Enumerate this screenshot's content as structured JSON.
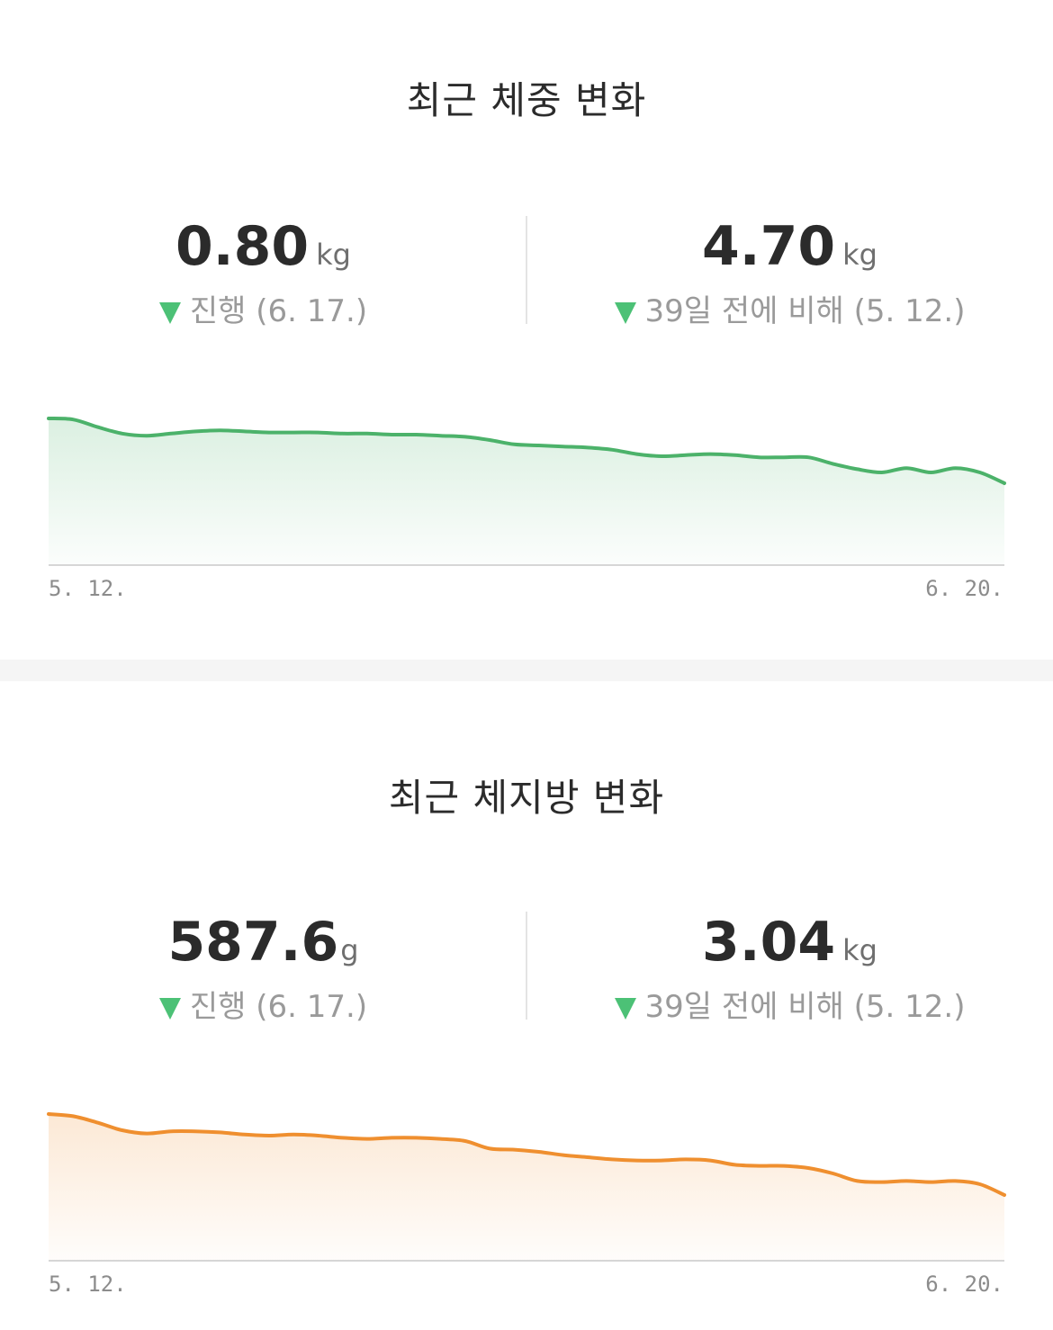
{
  "weight": {
    "title": "최근 체중 변화",
    "left_stat": {
      "value": "0.80",
      "unit": "kg",
      "caption": "진행 (6. 17.)"
    },
    "right_stat": {
      "value": "4.70",
      "unit": "kg",
      "caption": "39일 전에 비해 (5. 12.)"
    },
    "axis": {
      "start": "5. 12.",
      "end": "6. 20."
    },
    "line_color": "#4cb26a"
  },
  "fat": {
    "title": "최근 체지방 변화",
    "left_stat": {
      "value": "587.6",
      "unit": "g",
      "caption": "진행 (6. 17.)"
    },
    "right_stat": {
      "value": "3.04",
      "unit": "kg",
      "caption": "39일 전에 비해 (5. 12.)"
    },
    "axis": {
      "start": "5. 12.",
      "end": "6. 20."
    },
    "line_color": "#ef8f2f"
  },
  "arrow_color": "#4cc176",
  "chart_data": [
    {
      "type": "area",
      "x": [
        0,
        1,
        2,
        3,
        4,
        5,
        6,
        7,
        8,
        9,
        10,
        11,
        12,
        13,
        14,
        15,
        16,
        17,
        18,
        19,
        20,
        21,
        22,
        23,
        24,
        25,
        26,
        27,
        28,
        29,
        30,
        31,
        32,
        33,
        34,
        35,
        36,
        37,
        38,
        39
      ],
      "series": [
        {
          "values": [
            100,
            99,
            92,
            86,
            84,
            86,
            88,
            89,
            88,
            87,
            87,
            87,
            86,
            86,
            85,
            85,
            84,
            83,
            80,
            76,
            75,
            74,
            73,
            71,
            67,
            65,
            66,
            67,
            66,
            64,
            64,
            64,
            58,
            53,
            50,
            54,
            50,
            54,
            50,
            40
          ]
        }
      ],
      "xlabel": "",
      "ylabel": "",
      "x_tick_labels": [
        "5. 12.",
        "6. 20."
      ],
      "grid": false
    },
    {
      "type": "area",
      "x": [
        0,
        1,
        2,
        3,
        4,
        5,
        6,
        7,
        8,
        9,
        10,
        11,
        12,
        13,
        14,
        15,
        16,
        17,
        18,
        19,
        20,
        21,
        22,
        23,
        24,
        25,
        26,
        27,
        28,
        29,
        30,
        31,
        32,
        33,
        34,
        35,
        36,
        37,
        38,
        39
      ],
      "series": [
        {
          "values": [
            100,
            98,
            92,
            85,
            82,
            84,
            84,
            83,
            81,
            80,
            81,
            80,
            78,
            77,
            78,
            78,
            77,
            75,
            68,
            67,
            65,
            62,
            60,
            58,
            57,
            57,
            58,
            57,
            53,
            52,
            52,
            50,
            45,
            38,
            37,
            38,
            37,
            38,
            35,
            25
          ]
        }
      ],
      "xlabel": "",
      "ylabel": "",
      "x_tick_labels": [
        "5. 12.",
        "6. 20."
      ],
      "grid": false
    }
  ]
}
